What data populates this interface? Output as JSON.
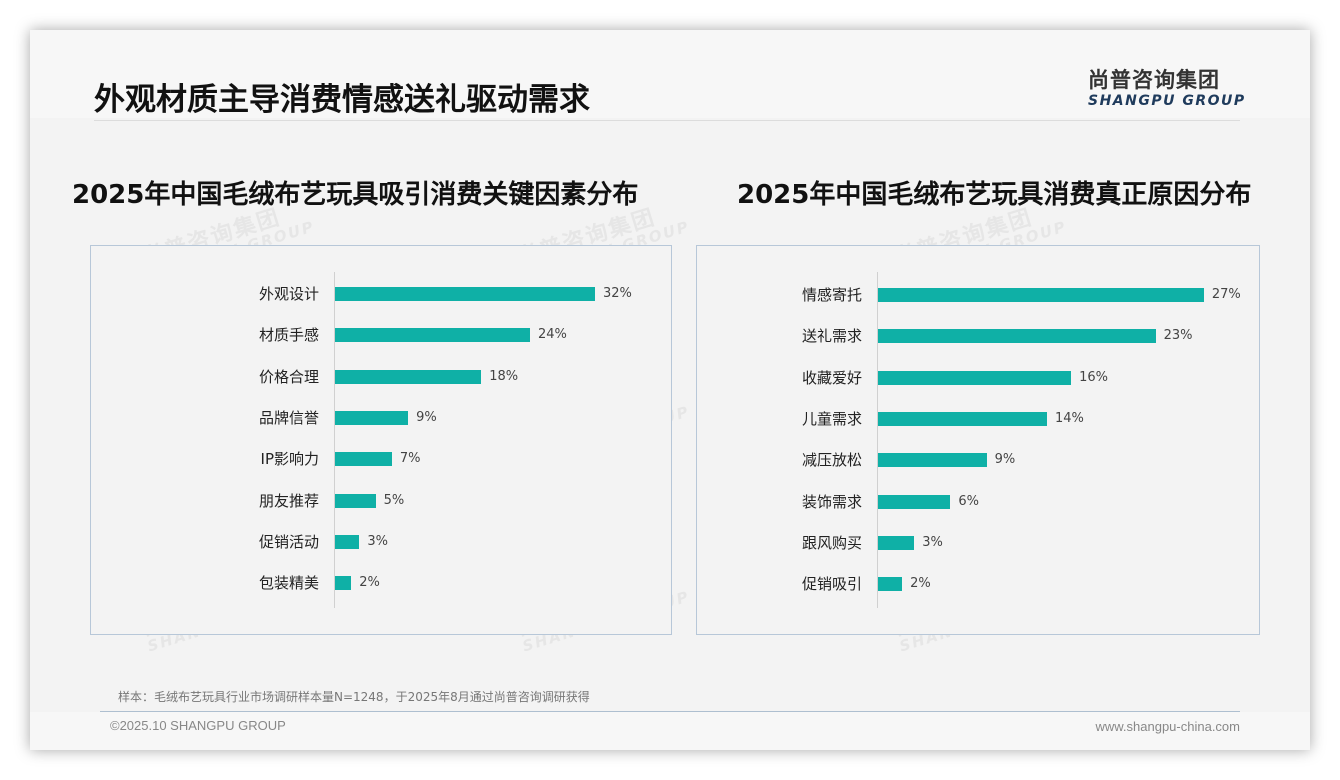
{
  "header": {
    "title": "外观材质主导消费情感送礼驱动需求",
    "logo_cn": "尚普咨询集团",
    "logo_en": "SHANGPU GROUP"
  },
  "watermark": {
    "cn": "尚普咨询集团",
    "en": "SHANGPU GROUP"
  },
  "footer": {
    "note": "样本：毛绒布艺玩具行业市场调研样本量N=1248，于2025年8月通过尚普咨询调研获得",
    "copyright": "©2025.10 SHANGPU GROUP",
    "website": "www.shangpu-china.com"
  },
  "colors": {
    "bar": "#0fb0a6",
    "panel_border": "#b7c7d8"
  },
  "chart_data": [
    {
      "type": "bar",
      "orientation": "horizontal",
      "title": "2025年中国毛绒布艺玩具吸引消费关键因素分布",
      "categories": [
        "外观设计",
        "材质手感",
        "价格合理",
        "品牌信誉",
        "IP影响力",
        "朋友推荐",
        "促销活动",
        "包装精美"
      ],
      "values": [
        32,
        24,
        18,
        9,
        7,
        5,
        3,
        2
      ],
      "labels": [
        "32%",
        "24%",
        "18%",
        "9%",
        "7%",
        "5%",
        "3%",
        "2%"
      ],
      "unit": "%",
      "xlabel": "",
      "ylabel": "",
      "grid": false,
      "legend": "none"
    },
    {
      "type": "bar",
      "orientation": "horizontal",
      "title": "2025年中国毛绒布艺玩具消费真正原因分布",
      "categories": [
        "情感寄托",
        "送礼需求",
        "收藏爱好",
        "儿童需求",
        "减压放松",
        "装饰需求",
        "跟风购买",
        "促销吸引"
      ],
      "values": [
        27,
        23,
        16,
        14,
        9,
        6,
        3,
        2
      ],
      "labels": [
        "27%",
        "23%",
        "16%",
        "14%",
        "9%",
        "6%",
        "3%",
        "2%"
      ],
      "unit": "%",
      "xlabel": "",
      "ylabel": "",
      "grid": false,
      "legend": "none"
    }
  ]
}
